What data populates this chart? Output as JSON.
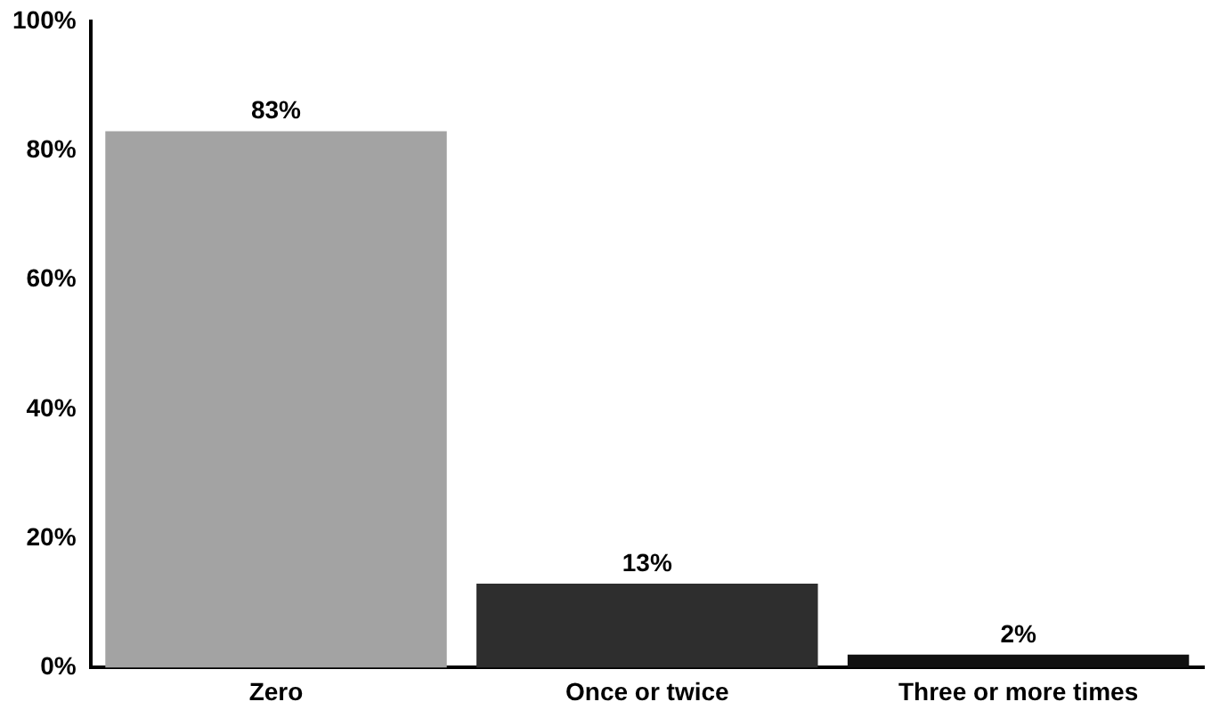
{
  "chart_data": {
    "type": "bar",
    "categories": [
      "Zero",
      "Once or twice",
      "Three or more times"
    ],
    "values": [
      83,
      13,
      2
    ],
    "value_labels": [
      "83%",
      "13%",
      "2%"
    ],
    "colors": [
      "#a3a3a3",
      "#2e2e2e",
      "#111111"
    ],
    "ylim": [
      0,
      100
    ],
    "yticks": [
      {
        "value": 0,
        "label": "0%"
      },
      {
        "value": 20,
        "label": "20%"
      },
      {
        "value": 40,
        "label": "40%"
      },
      {
        "value": 60,
        "label": "60%"
      },
      {
        "value": 80,
        "label": "80%"
      },
      {
        "value": 100,
        "label": "100%"
      }
    ],
    "grid": false,
    "legend": false
  }
}
